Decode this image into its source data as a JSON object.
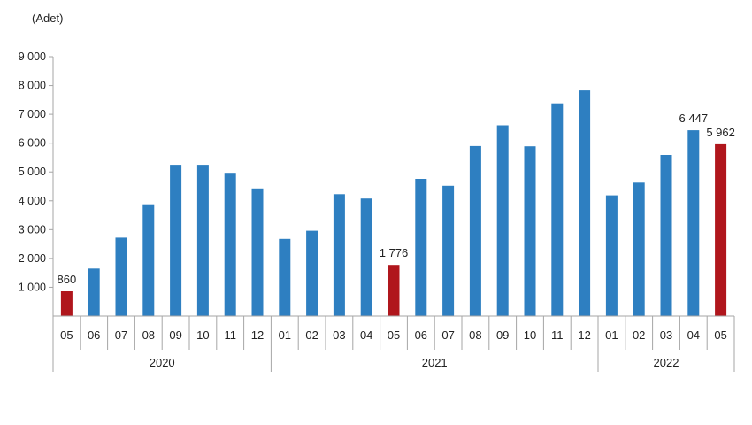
{
  "chart_data": {
    "type": "bar",
    "unit_label": "(Adet)",
    "y_ticks": [
      "9 000",
      "8 000",
      "7 000",
      "6 000",
      "5 000",
      "4 000",
      "3 000",
      "2 000",
      "1 000"
    ],
    "ylim": [
      0,
      9000
    ],
    "grid": false,
    "legend": "none",
    "colors": {
      "default": "#2e7fc1",
      "highlight": "#b0161c",
      "axis": "#a6a6a6"
    },
    "groups": [
      {
        "year": "2020",
        "months": [
          "05",
          "06",
          "07",
          "08",
          "09",
          "10",
          "11",
          "12"
        ]
      },
      {
        "year": "2021",
        "months": [
          "01",
          "02",
          "03",
          "04",
          "05",
          "06",
          "07",
          "08",
          "09",
          "10",
          "11",
          "12"
        ]
      },
      {
        "year": "2022",
        "months": [
          "01",
          "02",
          "03",
          "04",
          "05"
        ]
      }
    ],
    "values": [
      860,
      1650,
      2720,
      3880,
      5250,
      5250,
      4970,
      4430,
      2680,
      2960,
      4230,
      4080,
      1776,
      4760,
      4520,
      5900,
      6620,
      5890,
      7380,
      7830,
      4190,
      4630,
      5590,
      6447,
      5962
    ],
    "highlighted": [
      0,
      12,
      24
    ],
    "data_labels": [
      {
        "index": 0,
        "text": "860"
      },
      {
        "index": 12,
        "text": "1 776"
      },
      {
        "index": 23,
        "text": "6 447"
      },
      {
        "index": 24,
        "text": "5 962"
      }
    ]
  }
}
